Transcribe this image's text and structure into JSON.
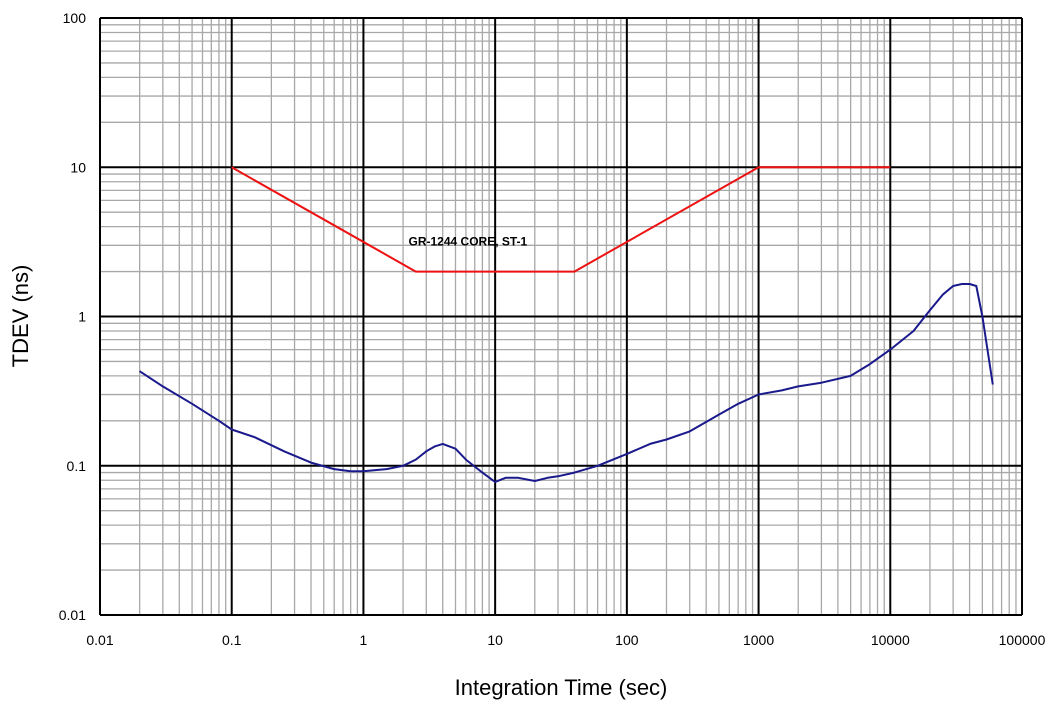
{
  "chart_data": {
    "type": "line",
    "title": "",
    "xlabel": "Integration Time (sec)",
    "ylabel": "TDEV (ns)",
    "x_scale": "log",
    "y_scale": "log",
    "xlim": [
      0.01,
      100000
    ],
    "ylim": [
      0.01,
      100
    ],
    "grid": true,
    "x_ticks": [
      "0.01",
      "0.1",
      "1",
      "10",
      "100",
      "1000",
      "10000",
      "100000"
    ],
    "y_ticks": [
      "0.01",
      "0.1",
      "1",
      "10",
      "100"
    ],
    "annotations": [
      {
        "text": "GR-1244 CORE, ST-1",
        "x": 2.2,
        "y": 3.0
      }
    ],
    "series": [
      {
        "color": "#ee1111",
        "x": [
          0.1,
          2.5,
          40,
          1000,
          10000
        ],
        "y": [
          10,
          2,
          2,
          10,
          10
        ]
      },
      {
        "color": "#1a1a8c",
        "x": [
          0.02,
          0.03,
          0.05,
          0.08,
          0.1,
          0.15,
          0.25,
          0.4,
          0.6,
          0.8,
          1,
          1.5,
          2,
          2.5,
          3,
          3.5,
          4,
          5,
          6,
          8,
          10,
          12,
          15,
          20,
          25,
          30,
          40,
          60,
          100,
          150,
          200,
          300,
          500,
          700,
          1000,
          1500,
          2000,
          3000,
          5000,
          7000,
          10000,
          15000,
          20000,
          25000,
          30000,
          35000,
          40000,
          45000,
          50000,
          60000
        ],
        "y": [
          0.43,
          0.34,
          0.26,
          0.2,
          0.175,
          0.155,
          0.125,
          0.105,
          0.095,
          0.092,
          0.092,
          0.095,
          0.1,
          0.11,
          0.125,
          0.135,
          0.14,
          0.13,
          0.11,
          0.09,
          0.078,
          0.083,
          0.083,
          0.079,
          0.083,
          0.085,
          0.09,
          0.1,
          0.12,
          0.14,
          0.15,
          0.17,
          0.22,
          0.26,
          0.3,
          0.32,
          0.34,
          0.36,
          0.4,
          0.48,
          0.6,
          0.8,
          1.1,
          1.4,
          1.6,
          1.65,
          1.65,
          1.6,
          1.0,
          0.35
        ]
      }
    ]
  }
}
